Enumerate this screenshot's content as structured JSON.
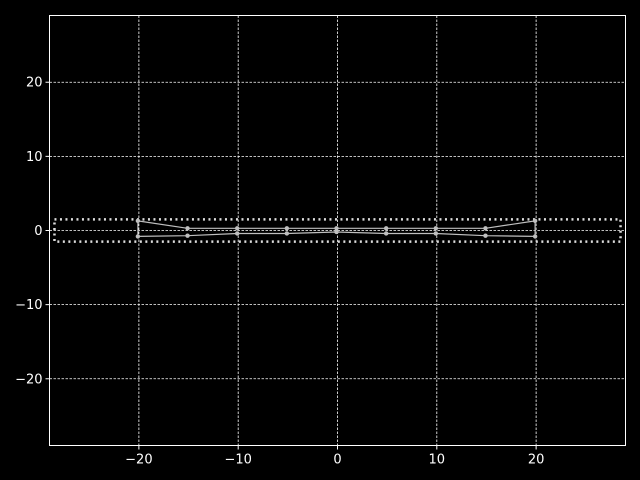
{
  "chart_data": {
    "type": "line",
    "title": "",
    "xlabel": "",
    "ylabel": "",
    "xlim": [
      -29,
      29
    ],
    "ylim": [
      -29,
      29
    ],
    "grid": true,
    "x_ticks": [
      -20,
      -10,
      0,
      10,
      20
    ],
    "y_ticks": [
      -20,
      -10,
      0,
      10,
      20
    ],
    "x_tick_labels": [
      "−20",
      "−10",
      "0",
      "10",
      "20"
    ],
    "y_tick_labels": [
      "−20",
      "−10",
      "0",
      "10",
      "20"
    ],
    "series": [
      {
        "style": "line-with-markers",
        "x": [
          -20.1,
          -15.1,
          -10.1,
          -5.1,
          -0.1,
          4.9,
          9.9,
          14.9,
          19.9
        ],
        "y": [
          1.3,
          0.3,
          0.3,
          0.3,
          0.3,
          0.3,
          0.3,
          0.3,
          1.3
        ]
      },
      {
        "style": "line-with-markers",
        "x": [
          -20.1,
          -15.1,
          -10.1,
          -5.1,
          -0.1,
          4.9,
          9.9,
          14.9,
          19.9
        ],
        "y": [
          -0.8,
          -0.7,
          -0.4,
          -0.4,
          -0.2,
          -0.4,
          -0.4,
          -0.7,
          -0.8
        ]
      },
      {
        "style": "vertical-connector",
        "x": [
          -20.1,
          -20.1
        ],
        "y": [
          1.3,
          -0.8
        ]
      },
      {
        "style": "vertical-connector",
        "x": [
          19.9,
          19.9
        ],
        "y": [
          1.3,
          -0.8
        ]
      }
    ],
    "boundary_box": {
      "style": "dotted",
      "x": [
        -28.5,
        28.5
      ],
      "y": [
        -1.5,
        1.5
      ]
    },
    "colors": {
      "background": "#000000",
      "axes": "#ffffff",
      "grid": "#ffffff",
      "series": "#bfbfbf",
      "boundary": "#dddddd"
    }
  }
}
